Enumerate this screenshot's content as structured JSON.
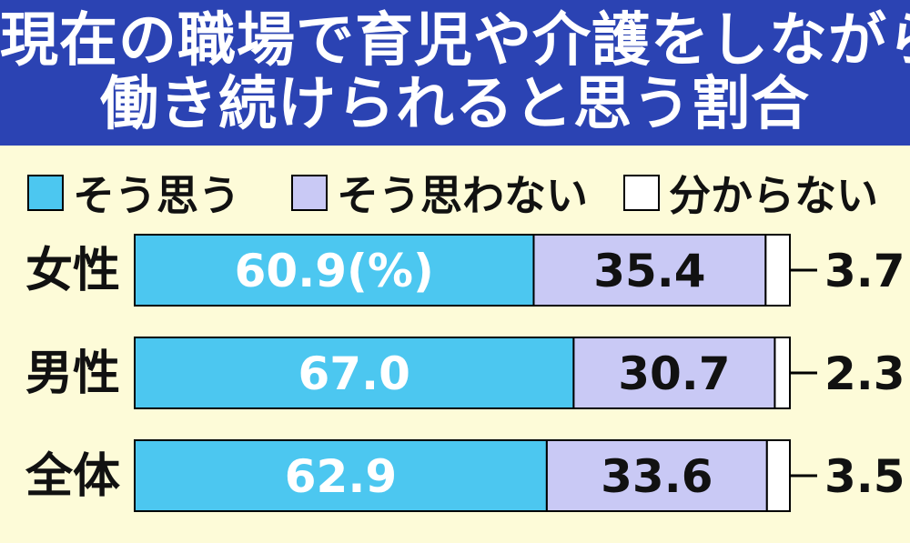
{
  "title": {
    "line1": "現在の職場で育児や介護をしながら",
    "line2": "働き続けられると思う割合"
  },
  "colors": {
    "header_bg": "#2b43b3",
    "background": "#fdfbd8",
    "agree": "#4cc7f0",
    "disagree": "#c9c9f5",
    "unknown": "#ffffff"
  },
  "chart_data": {
    "type": "bar",
    "stacked": true,
    "orientation": "horizontal",
    "unit": "%",
    "categories": [
      "女性",
      "男性",
      "全体"
    ],
    "series": [
      {
        "name": "そう思う",
        "values": [
          60.9,
          67.0,
          62.9
        ],
        "value_labels": [
          "60.9(%)",
          "67.0",
          "62.9"
        ]
      },
      {
        "name": "そう思わない",
        "values": [
          35.4,
          30.7,
          33.6
        ],
        "value_labels": [
          "35.4",
          "30.7",
          "33.6"
        ]
      },
      {
        "name": "分からない",
        "values": [
          3.7,
          2.3,
          3.5
        ],
        "value_labels": [
          "3.7",
          "2.3",
          "3.5"
        ]
      }
    ],
    "legend": "top"
  }
}
